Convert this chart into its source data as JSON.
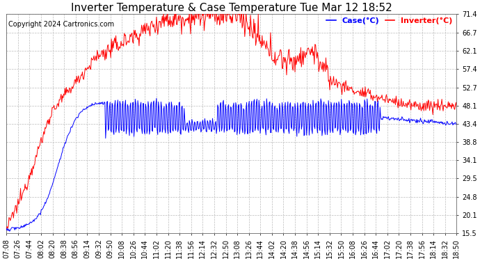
{
  "title": "Inverter Temperature & Case Temperature Tue Mar 12 18:52",
  "copyright": "Copyright 2024 Cartronics.com",
  "legend_case": "Case(°C)",
  "legend_inverter": "Inverter(°C)",
  "case_color": "blue",
  "inverter_color": "red",
  "yticks": [
    15.5,
    20.1,
    24.8,
    29.5,
    34.1,
    38.8,
    43.4,
    48.1,
    52.7,
    57.4,
    62.1,
    66.7,
    71.4
  ],
  "xtick_labels": [
    "07:08",
    "07:26",
    "07:44",
    "08:02",
    "08:20",
    "08:38",
    "08:56",
    "09:14",
    "09:32",
    "09:50",
    "10:08",
    "10:26",
    "10:44",
    "11:02",
    "11:20",
    "11:38",
    "11:56",
    "12:14",
    "12:32",
    "12:50",
    "13:08",
    "13:26",
    "13:44",
    "14:02",
    "14:20",
    "14:38",
    "14:56",
    "15:14",
    "15:32",
    "15:50",
    "16:08",
    "16:26",
    "16:44",
    "17:02",
    "17:20",
    "17:38",
    "17:56",
    "18:14",
    "18:32",
    "18:50"
  ],
  "background_color": "#ffffff",
  "grid_color": "#bbbbbb",
  "title_fontsize": 11,
  "copyright_fontsize": 7,
  "tick_fontsize": 7,
  "legend_fontsize": 8
}
